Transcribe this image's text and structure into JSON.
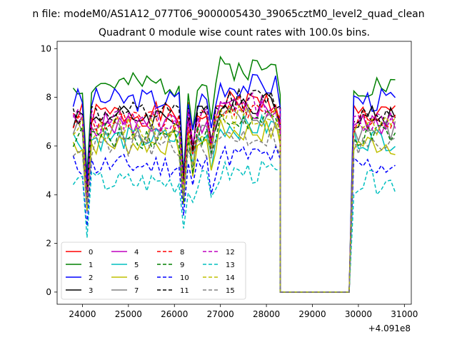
{
  "chart_data": {
    "type": "line",
    "suptitle": "n file: modeM0/AS1A12_077T06_9000005430_39065cztM0_level2_quad_clean",
    "title": "Quadrant 0 module wise count rates with 100.0s bins.",
    "xlabel": "",
    "ylabel": "",
    "x_offset_label": "+4.091e8",
    "xlim": [
      23450,
      31150
    ],
    "ylim": [
      -0.5,
      10.3
    ],
    "xticks": [
      24000,
      25000,
      26000,
      27000,
      28000,
      29000,
      30000,
      31000
    ],
    "yticks": [
      0,
      2,
      4,
      6,
      8,
      10
    ],
    "legend": {
      "position": "lower-left",
      "columns": 4
    },
    "segments": [
      {
        "x_start": 23800,
        "x_step": 100,
        "count": 46
      },
      {
        "x_start": 28300,
        "x_step": 100,
        "count": 16,
        "zero": true
      },
      {
        "x_start": 29900,
        "x_step": 100,
        "count": 10
      }
    ],
    "series": [
      {
        "name": "0",
        "color": "#ff0000",
        "dash": "solid",
        "base": 7.3,
        "bump": 0.5,
        "seed": 1
      },
      {
        "name": "1",
        "color": "#008000",
        "dash": "solid",
        "base": 8.5,
        "bump": 0.7,
        "seed": 2
      },
      {
        "name": "2",
        "color": "#0000ff",
        "dash": "solid",
        "base": 7.9,
        "bump": 0.6,
        "seed": 3
      },
      {
        "name": "3",
        "color": "#000000",
        "dash": "solid",
        "base": 7.2,
        "bump": 0.6,
        "seed": 4
      },
      {
        "name": "4",
        "color": "#bf00bf",
        "dash": "solid",
        "base": 6.9,
        "bump": 0.6,
        "seed": 5
      },
      {
        "name": "5",
        "color": "#00bfbf",
        "dash": "solid",
        "base": 6.3,
        "bump": 0.5,
        "seed": 6
      },
      {
        "name": "6",
        "color": "#bfbf00",
        "dash": "solid",
        "base": 6.1,
        "bump": 0.5,
        "seed": 7
      },
      {
        "name": "7",
        "color": "#808080",
        "dash": "solid",
        "base": 6.6,
        "bump": 0.5,
        "seed": 8
      },
      {
        "name": "8",
        "color": "#ff0000",
        "dash": "dashed",
        "base": 7.0,
        "bump": 0.6,
        "seed": 9
      },
      {
        "name": "9",
        "color": "#008000",
        "dash": "dashed",
        "base": 6.4,
        "bump": 0.6,
        "seed": 10
      },
      {
        "name": "10",
        "color": "#0000ff",
        "dash": "dashed",
        "base": 5.2,
        "bump": 0.4,
        "seed": 11
      },
      {
        "name": "11",
        "color": "#000000",
        "dash": "dashed",
        "base": 7.3,
        "bump": 0.6,
        "seed": 12
      },
      {
        "name": "12",
        "color": "#bf00bf",
        "dash": "dashed",
        "base": 7.1,
        "bump": 0.6,
        "seed": 13
      },
      {
        "name": "13",
        "color": "#00bfbf",
        "dash": "dashed",
        "base": 4.5,
        "bump": 0.4,
        "seed": 14
      },
      {
        "name": "14",
        "color": "#bfbf00",
        "dash": "dashed",
        "base": 6.7,
        "bump": 0.5,
        "seed": 15
      },
      {
        "name": "15",
        "color": "#808080",
        "dash": "dashed",
        "base": 6.0,
        "bump": 0.4,
        "seed": 16
      }
    ],
    "dips": [
      {
        "x": 24100,
        "factor": 0.55
      },
      {
        "x": 26200,
        "factor": 0.6
      },
      {
        "x": 26400,
        "factor": 0.82
      },
      {
        "x": 26800,
        "factor": 0.85
      }
    ]
  }
}
